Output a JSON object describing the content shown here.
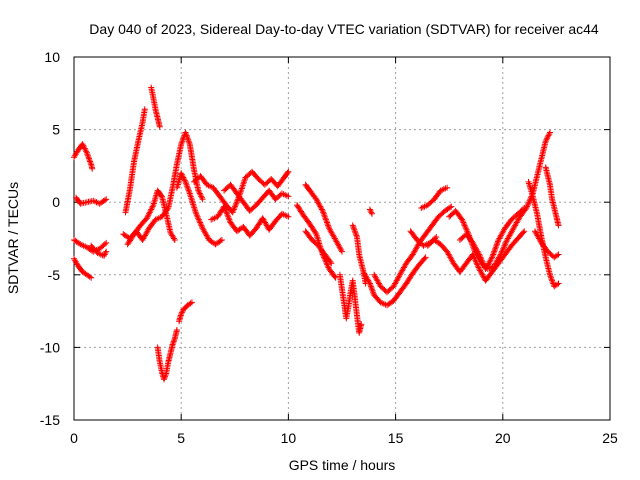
{
  "chart_data": {
    "type": "scatter",
    "title": "Day 040 of 2023, Sidereal Day-to-day VTEC variation (SDTVAR) for receiver ac44",
    "xlabel": "GPS time / hours",
    "ylabel": "SDTVAR / TECUs",
    "xlim": [
      0,
      25
    ],
    "ylim": [
      -15,
      10
    ],
    "xticks": [
      0,
      5,
      10,
      15,
      20,
      25
    ],
    "yticks": [
      -15,
      -10,
      -5,
      0,
      5,
      10
    ],
    "xtick_labels": [
      "0",
      "5",
      "10",
      "15",
      "20",
      "25"
    ],
    "ytick_labels": [
      "-15",
      "-10",
      "-5",
      "0",
      "5",
      "10"
    ],
    "grid": true,
    "marker": "+",
    "series": [
      {
        "name": "SDTVAR",
        "color": "#ff0000",
        "tracks": [
          [
            [
              0.0,
              3.1
            ],
            [
              0.2,
              3.6
            ],
            [
              0.4,
              4.0
            ],
            [
              0.6,
              3.4
            ],
            [
              0.8,
              2.6
            ],
            [
              0.85,
              2.3
            ]
          ],
          [
            [
              0.1,
              0.3
            ],
            [
              0.3,
              -0.1
            ],
            [
              0.6,
              0.0
            ],
            [
              0.9,
              0.1
            ],
            [
              1.2,
              -0.1
            ],
            [
              1.5,
              0.2
            ]
          ],
          [
            [
              0.0,
              -2.6
            ],
            [
              0.3,
              -2.9
            ],
            [
              0.6,
              -3.1
            ],
            [
              0.9,
              -3.4
            ],
            [
              1.2,
              -3.2
            ],
            [
              1.5,
              -2.8
            ]
          ],
          [
            [
              0.0,
              -3.9
            ],
            [
              0.2,
              -4.4
            ],
            [
              0.4,
              -4.8
            ],
            [
              0.6,
              -5.0
            ],
            [
              0.8,
              -5.2
            ]
          ],
          [
            [
              0.8,
              -3.0
            ],
            [
              1.1,
              -3.5
            ],
            [
              1.4,
              -3.7
            ],
            [
              1.5,
              -3.4
            ]
          ],
          [
            [
              2.4,
              -0.7
            ],
            [
              2.6,
              0.8
            ],
            [
              2.8,
              2.8
            ],
            [
              3.0,
              4.2
            ],
            [
              3.2,
              5.5
            ],
            [
              3.3,
              6.4
            ]
          ],
          [
            [
              2.3,
              -2.2
            ],
            [
              2.6,
              -2.5
            ],
            [
              2.9,
              -2.0
            ],
            [
              3.2,
              -2.6
            ],
            [
              3.5,
              -1.8
            ],
            [
              3.8,
              -1.2
            ],
            [
              4.1,
              -1.0
            ],
            [
              4.4,
              -0.4
            ],
            [
              4.6,
              1.0
            ],
            [
              4.8,
              2.6
            ],
            [
              5.0,
              4.0
            ],
            [
              5.2,
              4.8
            ],
            [
              5.4,
              4.0
            ],
            [
              5.6,
              2.2
            ],
            [
              5.8,
              0.8
            ],
            [
              6.0,
              0.2
            ]
          ],
          [
            [
              2.5,
              -2.9
            ],
            [
              2.8,
              -2.2
            ],
            [
              3.1,
              -1.6
            ],
            [
              3.4,
              -1.1
            ],
            [
              3.7,
              -0.2
            ],
            [
              3.9,
              0.8
            ],
            [
              4.1,
              0.4
            ],
            [
              4.3,
              -0.8
            ],
            [
              4.5,
              -2.1
            ],
            [
              4.7,
              -2.6
            ]
          ],
          [
            [
              3.6,
              7.9
            ],
            [
              3.7,
              7.2
            ],
            [
              3.8,
              6.4
            ],
            [
              3.9,
              5.8
            ],
            [
              4.0,
              5.2
            ]
          ],
          [
            [
              3.9,
              -10.0
            ],
            [
              4.0,
              -11.0
            ],
            [
              4.1,
              -11.7
            ],
            [
              4.2,
              -12.2
            ],
            [
              4.3,
              -11.8
            ],
            [
              4.4,
              -11.0
            ],
            [
              4.5,
              -10.4
            ],
            [
              4.6,
              -9.8
            ],
            [
              4.7,
              -9.4
            ],
            [
              4.8,
              -8.8
            ]
          ],
          [
            [
              4.9,
              -8.2
            ],
            [
              5.0,
              -7.7
            ],
            [
              5.1,
              -7.4
            ],
            [
              5.3,
              -7.1
            ],
            [
              5.5,
              -6.9
            ]
          ],
          [
            [
              4.8,
              1.0
            ],
            [
              5.0,
              2.0
            ],
            [
              5.2,
              1.4
            ],
            [
              5.4,
              0.6
            ],
            [
              5.7,
              -0.8
            ],
            [
              6.0,
              -1.8
            ],
            [
              6.3,
              -2.6
            ],
            [
              6.6,
              -2.9
            ],
            [
              6.9,
              -2.6
            ]
          ],
          [
            [
              5.6,
              1.4
            ],
            [
              5.9,
              1.8
            ],
            [
              6.2,
              1.2
            ],
            [
              6.5,
              1.0
            ],
            [
              6.8,
              0.4
            ],
            [
              7.1,
              -0.2
            ],
            [
              7.4,
              -0.7
            ],
            [
              7.7,
              0.4
            ],
            [
              8.0,
              1.7
            ],
            [
              8.3,
              2.1
            ],
            [
              8.6,
              1.6
            ],
            [
              8.9,
              1.2
            ],
            [
              9.2,
              1.6
            ],
            [
              9.5,
              1.1
            ],
            [
              9.8,
              1.7
            ],
            [
              10.0,
              2.1
            ]
          ],
          [
            [
              6.4,
              -1.2
            ],
            [
              6.7,
              -1.0
            ],
            [
              7.0,
              -0.3
            ],
            [
              7.3,
              -1.4
            ],
            [
              7.6,
              -2.0
            ],
            [
              7.9,
              -1.7
            ],
            [
              8.2,
              -2.3
            ],
            [
              8.5,
              -1.8
            ],
            [
              8.8,
              -1.1
            ],
            [
              9.1,
              -1.9
            ],
            [
              9.4,
              -1.3
            ],
            [
              9.7,
              -0.8
            ],
            [
              10.0,
              -1.0
            ]
          ],
          [
            [
              7.0,
              0.8
            ],
            [
              7.3,
              1.2
            ],
            [
              7.6,
              0.6
            ],
            [
              7.9,
              0.0
            ],
            [
              8.2,
              -0.6
            ],
            [
              8.5,
              -0.2
            ],
            [
              8.8,
              0.3
            ],
            [
              9.1,
              0.8
            ],
            [
              9.4,
              0.2
            ],
            [
              9.7,
              0.6
            ],
            [
              10.0,
              0.4
            ]
          ],
          [
            [
              10.8,
              1.2
            ],
            [
              11.0,
              0.8
            ],
            [
              11.3,
              0.2
            ],
            [
              11.6,
              -0.6
            ],
            [
              11.9,
              -1.8
            ],
            [
              12.2,
              -2.6
            ],
            [
              12.5,
              -3.4
            ]
          ],
          [
            [
              10.4,
              -0.2
            ],
            [
              10.7,
              -0.9
            ],
            [
              11.0,
              -1.5
            ],
            [
              11.3,
              -2.2
            ],
            [
              11.6,
              -3.6
            ],
            [
              11.9,
              -4.6
            ],
            [
              12.2,
              -5.2
            ]
          ],
          [
            [
              10.8,
              -2.0
            ],
            [
              11.1,
              -2.6
            ],
            [
              11.4,
              -3.0
            ],
            [
              11.7,
              -3.6
            ],
            [
              12.0,
              -4.2
            ]
          ],
          [
            [
              12.4,
              -5.0
            ],
            [
              12.5,
              -6.0
            ],
            [
              12.6,
              -7.0
            ],
            [
              12.7,
              -8.0
            ],
            [
              12.8,
              -7.2
            ],
            [
              12.9,
              -6.2
            ],
            [
              13.0,
              -5.4
            ],
            [
              13.1,
              -6.6
            ],
            [
              13.2,
              -7.8
            ],
            [
              13.3,
              -9.0
            ],
            [
              13.4,
              -8.4
            ]
          ],
          [
            [
              13.0,
              -1.6
            ],
            [
              13.2,
              -2.4
            ],
            [
              13.3,
              -3.6
            ],
            [
              13.5,
              -4.8
            ],
            [
              13.6,
              -5.6
            ]
          ],
          [
            [
              13.8,
              -0.5
            ],
            [
              13.9,
              -0.8
            ]
          ],
          [
            [
              13.5,
              -4.8
            ],
            [
              13.8,
              -5.6
            ],
            [
              14.0,
              -6.4
            ],
            [
              14.3,
              -6.9
            ],
            [
              14.6,
              -7.1
            ],
            [
              14.9,
              -6.8
            ],
            [
              15.2,
              -6.2
            ],
            [
              15.5,
              -5.6
            ],
            [
              15.8,
              -4.9
            ],
            [
              16.1,
              -4.3
            ],
            [
              16.4,
              -3.8
            ]
          ],
          [
            [
              14.0,
              -5.0
            ],
            [
              14.3,
              -5.8
            ],
            [
              14.6,
              -6.2
            ],
            [
              14.9,
              -5.8
            ],
            [
              15.2,
              -5.0
            ],
            [
              15.5,
              -4.2
            ],
            [
              15.8,
              -3.6
            ],
            [
              16.1,
              -2.8
            ],
            [
              16.4,
              -2.2
            ],
            [
              16.7,
              -1.6
            ],
            [
              17.0,
              -1.0
            ],
            [
              17.3,
              -0.6
            ],
            [
              17.6,
              -0.3
            ]
          ],
          [
            [
              15.7,
              -2.0
            ],
            [
              16.0,
              -2.6
            ],
            [
              16.3,
              -3.0
            ],
            [
              16.6,
              -2.8
            ],
            [
              16.9,
              -2.4
            ]
          ],
          [
            [
              16.2,
              -0.4
            ],
            [
              16.5,
              -0.2
            ],
            [
              16.8,
              0.2
            ],
            [
              17.1,
              0.8
            ],
            [
              17.4,
              1.0
            ]
          ],
          [
            [
              16.5,
              -3.0
            ],
            [
              16.8,
              -2.6
            ],
            [
              17.1,
              -2.9
            ],
            [
              17.4,
              -3.4
            ],
            [
              17.7,
              -4.2
            ],
            [
              18.0,
              -4.8
            ],
            [
              18.3,
              -4.2
            ],
            [
              18.6,
              -3.6
            ],
            [
              18.9,
              -4.6
            ],
            [
              19.2,
              -5.4
            ],
            [
              19.5,
              -4.8
            ],
            [
              19.8,
              -4.2
            ],
            [
              20.1,
              -3.6
            ],
            [
              20.4,
              -3.0
            ],
            [
              20.7,
              -2.5
            ],
            [
              21.0,
              -2.0
            ]
          ],
          [
            [
              17.5,
              -1.0
            ],
            [
              17.8,
              -0.6
            ],
            [
              18.1,
              -1.2
            ],
            [
              18.4,
              -2.2
            ],
            [
              18.7,
              -3.4
            ],
            [
              19.0,
              -4.2
            ],
            [
              19.3,
              -4.6
            ],
            [
              19.6,
              -4.4
            ],
            [
              19.9,
              -3.6
            ],
            [
              20.2,
              -2.6
            ],
            [
              20.5,
              -1.8
            ],
            [
              20.8,
              -1.0
            ],
            [
              21.1,
              -0.4
            ],
            [
              21.4,
              0.6
            ],
            [
              21.6,
              1.8
            ],
            [
              21.8,
              3.0
            ],
            [
              22.0,
              4.2
            ],
            [
              22.2,
              4.8
            ]
          ],
          [
            [
              18.0,
              -2.6
            ],
            [
              18.3,
              -2.2
            ],
            [
              18.6,
              -2.8
            ],
            [
              18.9,
              -3.6
            ],
            [
              19.2,
              -4.6
            ],
            [
              19.5,
              -3.8
            ],
            [
              19.8,
              -2.6
            ],
            [
              20.1,
              -1.8
            ],
            [
              20.4,
              -1.2
            ],
            [
              20.7,
              -0.8
            ],
            [
              21.0,
              -0.4
            ]
          ],
          [
            [
              21.2,
              1.4
            ],
            [
              21.4,
              0.4
            ],
            [
              21.6,
              -0.8
            ],
            [
              21.8,
              -2.4
            ],
            [
              22.0,
              -3.8
            ],
            [
              22.2,
              -5.0
            ],
            [
              22.4,
              -5.8
            ],
            [
              22.6,
              -5.6
            ]
          ],
          [
            [
              22.0,
              2.4
            ],
            [
              22.2,
              1.2
            ],
            [
              22.3,
              0.2
            ],
            [
              22.5,
              -1.0
            ],
            [
              22.6,
              -1.6
            ]
          ],
          [
            [
              21.5,
              -2.0
            ],
            [
              21.8,
              -2.8
            ],
            [
              22.1,
              -3.4
            ],
            [
              22.4,
              -3.8
            ],
            [
              22.6,
              -3.6
            ]
          ]
        ]
      }
    ]
  }
}
